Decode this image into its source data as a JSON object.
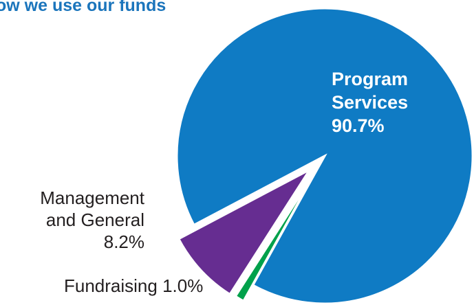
{
  "title": "ow we use our funds",
  "chart_data": {
    "type": "pie",
    "title": "ow we use our funds",
    "series": [
      {
        "name": "Program Services",
        "label_lines": [
          "Program",
          "Services"
        ],
        "value": 90.7,
        "value_label": "90.7%",
        "color": "#0f7bc4",
        "exploded": false
      },
      {
        "name": "Management and General",
        "label_lines": [
          "Management",
          "and General"
        ],
        "value": 8.2,
        "value_label": "8.2%",
        "color": "#662d91",
        "exploded": true
      },
      {
        "name": "Fundraising",
        "label_lines": [
          "Fundraising"
        ],
        "value": 1.0,
        "value_label": "1.0%",
        "color": "#00a14b",
        "exploded": true
      }
    ],
    "legend": "none",
    "grid": false
  }
}
